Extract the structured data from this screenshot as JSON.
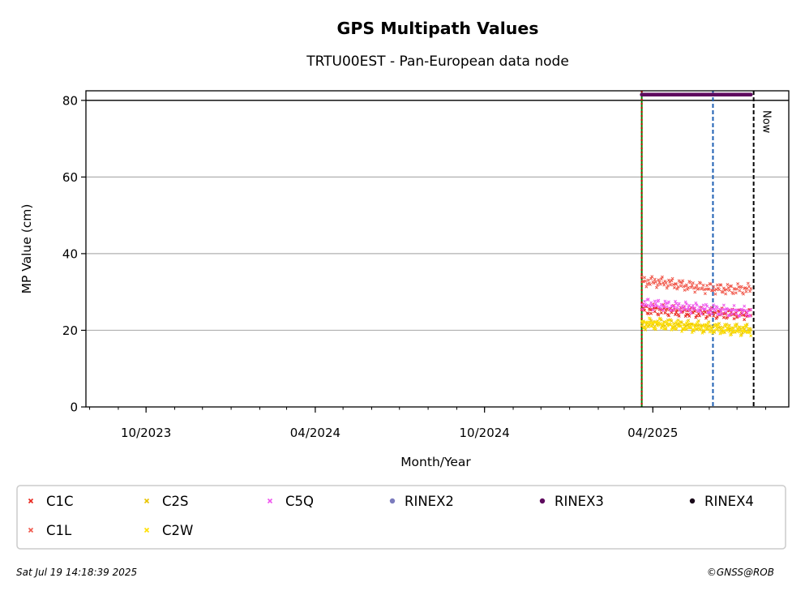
{
  "chart_data": {
    "type": "scatter",
    "title": "GPS Multipath Values",
    "subtitle": "TRTU00EST - Pan-European data node",
    "xlabel": "Month/Year",
    "ylabel": "MP Value (cm)",
    "xlim": [
      "2023-07-28",
      "2025-08-26"
    ],
    "ylim": [
      0,
      82.5
    ],
    "x_ticks": [
      {
        "date": "2023-10-01",
        "label": "10/2023"
      },
      {
        "date": "2024-04-01",
        "label": "04/2024"
      },
      {
        "date": "2024-10-01",
        "label": "10/2024"
      },
      {
        "date": "2025-04-01",
        "label": "04/2025"
      }
    ],
    "y_ticks": [
      0,
      20,
      40,
      60,
      80
    ],
    "grid": "horizontal",
    "reference_line_y": 80,
    "vertical_markers": [
      {
        "date": "2025-03-20",
        "color": "#008000",
        "style": "solid"
      },
      {
        "date": "2025-03-20",
        "color": "#cc0000",
        "style": "dotted"
      },
      {
        "date": "2025-06-05",
        "color": "#1f5fb4",
        "style": "dashed"
      },
      {
        "date": "2025-07-19",
        "color": "#000000",
        "style": "dashed",
        "label": "Now"
      }
    ],
    "series": [
      {
        "name": "C1C",
        "color": "#e8261c",
        "marker": "x",
        "x_start": "2025-03-20",
        "x_end": "2025-07-16",
        "values": [
          25.5,
          25.2,
          24.8,
          24.5,
          24.3,
          24.2
        ]
      },
      {
        "name": "C1L",
        "color": "#f0594c",
        "marker": "x",
        "x_start": "2025-03-20",
        "x_end": "2025-07-16",
        "values": [
          32.8,
          32.5,
          31.7,
          31.0,
          30.7,
          30.8
        ]
      },
      {
        "name": "C2S",
        "color": "#e8c400",
        "marker": "x",
        "x_start": "2025-03-20",
        "x_end": "2025-07-16",
        "values": [
          21.5,
          21.8,
          21.2,
          20.8,
          20.3,
          20.1
        ]
      },
      {
        "name": "C2W",
        "color": "#ffe000",
        "marker": "x",
        "x_start": "2025-03-20",
        "x_end": "2025-07-16",
        "values": [
          21.8,
          21.5,
          21.0,
          20.6,
          20.2,
          20.0
        ]
      },
      {
        "name": "C5Q",
        "color": "#ee55ee",
        "marker": "x",
        "x_start": "2025-03-20",
        "x_end": "2025-07-16",
        "values": [
          27.0,
          26.5,
          26.0,
          25.5,
          25.0,
          24.8
        ]
      },
      {
        "name": "RINEX2",
        "color": "#7b7bbd",
        "marker": "dot",
        "x_start": "",
        "x_end": "",
        "values": []
      },
      {
        "name": "RINEX3",
        "color": "#5e0a5e",
        "marker": "dot",
        "x_start": "2025-03-20",
        "x_end": "2025-07-16",
        "values": [
          81.5,
          81.5,
          81.5,
          81.5,
          81.5,
          81.5
        ]
      },
      {
        "name": "RINEX4",
        "color": "#1a0a1a",
        "marker": "dot",
        "x_start": "",
        "x_end": "",
        "values": []
      }
    ],
    "legend_position": "bottom",
    "legend_columns": 6
  },
  "footer": {
    "timestamp": "Sat Jul 19 14:18:39 2025",
    "credit": "©GNSS@ROB"
  }
}
